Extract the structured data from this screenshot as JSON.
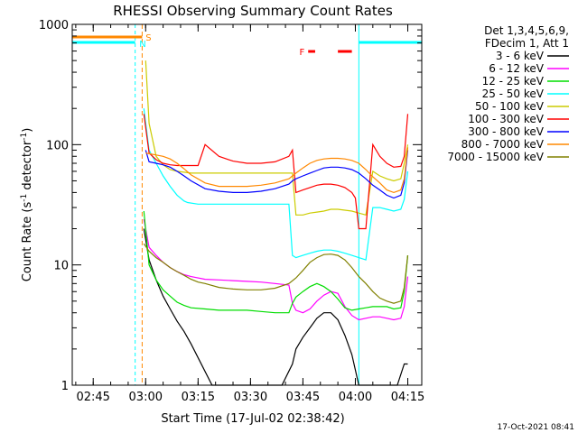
{
  "chart_data": {
    "type": "line",
    "title": "RHESSI Observing Summary Count Rates",
    "xlabel": "Start Time (17-Jul-02 02:38:42)",
    "ylabel_main": "Count Rate (s",
    "ylabel_sup": "-1",
    "ylabel_mid": " detector",
    "ylabel_sup2": "-1",
    "ylabel_end": ")",
    "yscale": "log",
    "ylim": [
      1,
      1000
    ],
    "xlim_minutes": [
      0,
      100
    ],
    "x_tick_labels": [
      "02:45",
      "03:00",
      "03:15",
      "03:30",
      "03:45",
      "04:00",
      "04:15"
    ],
    "x_tick_minutes": [
      6,
      21,
      36,
      51,
      66,
      81,
      96
    ],
    "y_tick_labels": [
      "1",
      "10",
      "100",
      "1000"
    ],
    "y_tick_values": [
      1,
      10,
      100,
      1000
    ],
    "legend_header": [
      "Det 1,3,4,5,6,9,",
      "FDecim 1, Att 1"
    ],
    "legend_placement": "right",
    "footer_date": "17-Oct-2021 08:41",
    "flag_s_label": "S",
    "flag_n_label": "N",
    "flag_f_label": "F",
    "night_intervals": [
      [
        0,
        18
      ],
      [
        82,
        100
      ]
    ],
    "series": [
      {
        "name": "3 - 6 keV",
        "color": "#000000",
        "x": [
          20.5,
          22,
          24,
          26,
          28,
          30,
          32,
          34,
          40,
          50,
          60,
          63,
          64,
          66,
          68,
          70,
          72,
          74,
          76,
          78,
          80,
          82,
          84,
          86,
          88,
          90,
          93,
          95,
          96
        ],
        "y": [
          20,
          11,
          7.5,
          5.5,
          4.3,
          3.4,
          2.8,
          2.2,
          1,
          1,
          1,
          1.5,
          2.0,
          2.5,
          3.0,
          3.6,
          4.0,
          4.0,
          3.5,
          2.6,
          1.8,
          1,
          1,
          1,
          1,
          1,
          1,
          1.5,
          1.5
        ]
      },
      {
        "name": "6 - 12 keV",
        "color": "#ff00ff",
        "x": [
          20.5,
          22,
          24,
          26,
          28,
          30,
          32,
          34,
          38,
          42,
          46,
          50,
          54,
          58,
          62,
          63,
          64,
          66,
          68,
          70,
          72,
          74,
          76,
          78,
          80,
          82,
          84,
          86,
          88,
          90,
          92,
          94,
          95,
          96
        ],
        "y": [
          24,
          14,
          12,
          10.5,
          9.5,
          8.8,
          8.3,
          8.0,
          7.6,
          7.5,
          7.4,
          7.3,
          7.2,
          7.0,
          6.8,
          4.8,
          4.2,
          4.0,
          4.3,
          5.0,
          5.6,
          6.0,
          5.8,
          4.5,
          3.8,
          3.5,
          3.6,
          3.7,
          3.7,
          3.6,
          3.5,
          3.6,
          4.5,
          8
        ]
      },
      {
        "name": "12 - 25 keV",
        "color": "#00dd00",
        "x": [
          20.5,
          22,
          24,
          26,
          28,
          30,
          32,
          34,
          38,
          42,
          46,
          50,
          54,
          58,
          62,
          63,
          64,
          66,
          68,
          70,
          72,
          74,
          76,
          78,
          80,
          82,
          84,
          86,
          88,
          90,
          92,
          94,
          95,
          96
        ],
        "y": [
          28,
          10,
          7.5,
          6.2,
          5.5,
          4.9,
          4.6,
          4.4,
          4.3,
          4.2,
          4.2,
          4.2,
          4.1,
          4.0,
          4.0,
          4.8,
          5.4,
          6.0,
          6.6,
          7.0,
          6.6,
          6.0,
          5.2,
          4.4,
          4.2,
          4.3,
          4.4,
          4.5,
          4.5,
          4.5,
          4.3,
          4.4,
          6.0,
          12
        ]
      },
      {
        "name": "25 - 50 keV",
        "color": "#00ffff",
        "x": [
          20.5,
          22,
          24,
          26,
          28,
          30,
          32,
          33,
          36,
          40,
          44,
          48,
          52,
          56,
          60,
          62,
          63,
          64,
          66,
          68,
          70,
          72,
          74,
          76,
          78,
          80,
          82,
          84,
          86,
          88,
          90,
          92,
          94,
          95,
          96
        ],
        "y": [
          200,
          90,
          70,
          55,
          45,
          38,
          34,
          33,
          32,
          32,
          32,
          32,
          32,
          32,
          32,
          32,
          12,
          11.5,
          12,
          12.5,
          13,
          13.3,
          13.3,
          13,
          12.5,
          12,
          11.5,
          11,
          30,
          30,
          29,
          28,
          29,
          35,
          60
        ]
      },
      {
        "name": "50 - 100 keV",
        "color": "#cccc00",
        "x": [
          21,
          22,
          24,
          26,
          28,
          30,
          32,
          34,
          38,
          42,
          46,
          50,
          54,
          58,
          62,
          63,
          64,
          66,
          68,
          70,
          72,
          74,
          76,
          78,
          80,
          82,
          84,
          86,
          88,
          90,
          92,
          94,
          95,
          96
        ],
        "y": [
          500,
          150,
          80,
          68,
          62,
          60,
          59,
          58,
          58,
          58,
          58,
          58,
          58,
          58,
          58,
          58,
          26,
          26,
          27,
          27.5,
          28,
          29,
          29,
          28.5,
          28,
          27,
          26,
          60,
          55,
          52,
          50,
          52,
          70,
          100
        ]
      },
      {
        "name": "100 - 300 keV",
        "color": "#ff0000",
        "x": [
          20.5,
          22,
          24,
          26,
          28,
          30,
          32,
          34,
          36,
          38,
          42,
          46,
          50,
          54,
          58,
          62,
          63,
          64,
          66,
          68,
          70,
          72,
          74,
          76,
          78,
          80,
          81,
          82,
          84,
          86,
          88,
          90,
          92,
          94,
          95,
          96
        ],
        "y": [
          180,
          85,
          75,
          70,
          68,
          67,
          67,
          67,
          67,
          100,
          80,
          73,
          70,
          70,
          72,
          80,
          90,
          40,
          42,
          44,
          46,
          47,
          47,
          46,
          44,
          40,
          36,
          20,
          20,
          100,
          80,
          70,
          65,
          66,
          80,
          180
        ]
      },
      {
        "name": "300 - 800 keV",
        "color": "#0000ff",
        "x": [
          21,
          22,
          24,
          26,
          28,
          30,
          32,
          34,
          38,
          42,
          46,
          50,
          54,
          58,
          62,
          63,
          64,
          66,
          68,
          70,
          72,
          74,
          76,
          78,
          80,
          82,
          84,
          86,
          88,
          90,
          92,
          94,
          95,
          96
        ],
        "y": [
          90,
          72,
          70,
          68,
          65,
          60,
          55,
          50,
          43,
          41,
          40,
          40,
          41,
          43,
          47,
          50,
          52,
          55,
          58,
          61,
          64,
          65,
          65,
          64,
          62,
          58,
          52,
          46,
          42,
          38,
          36,
          38,
          48,
          90
        ]
      },
      {
        "name": "800 - 7000 keV",
        "color": "#ff8800",
        "x": [
          21,
          22,
          24,
          26,
          28,
          30,
          32,
          34,
          38,
          42,
          46,
          50,
          54,
          58,
          62,
          63,
          64,
          66,
          68,
          70,
          72,
          74,
          76,
          78,
          80,
          82,
          84,
          86,
          88,
          90,
          92,
          94,
          95,
          96
        ],
        "y": [
          85,
          84,
          82,
          80,
          76,
          70,
          63,
          56,
          48,
          45,
          45,
          45,
          46,
          48,
          52,
          55,
          58,
          64,
          70,
          74,
          76,
          77,
          77,
          76,
          74,
          70,
          62,
          54,
          48,
          42,
          40,
          42,
          52,
          95
        ]
      },
      {
        "name": "7000 - 15000 keV",
        "color": "#808000",
        "x": [
          20.5,
          22,
          24,
          26,
          28,
          30,
          32,
          34,
          36,
          38,
          42,
          46,
          50,
          54,
          58,
          62,
          64,
          66,
          68,
          70,
          72,
          74,
          76,
          78,
          80,
          82,
          84,
          86,
          88,
          90,
          92,
          94,
          95,
          96
        ],
        "y": [
          15,
          13,
          11.5,
          10.5,
          9.5,
          8.8,
          8.2,
          7.6,
          7.2,
          7.0,
          6.5,
          6.3,
          6.2,
          6.2,
          6.4,
          7.0,
          7.8,
          9.0,
          10.5,
          11.5,
          12.2,
          12.3,
          12.0,
          11.0,
          9.5,
          8.0,
          7.0,
          6.0,
          5.3,
          5.0,
          4.8,
          5.0,
          6.5,
          12
        ]
      }
    ]
  }
}
